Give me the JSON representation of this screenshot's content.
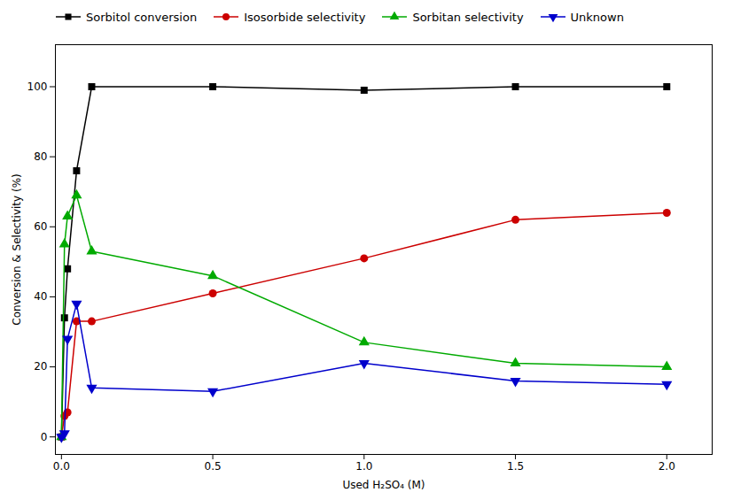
{
  "chart_data": {
    "type": "line",
    "xlabel": "Used H₂SO₄ (M)",
    "ylabel": "Conversion & Selectivity (%)",
    "xlim": [
      -0.02,
      2.15
    ],
    "ylim": [
      -5,
      112
    ],
    "xticks": [
      {
        "value": 0.0,
        "label": "0.0"
      },
      0.5,
      {
        "value": 1.0,
        "label": "1.0"
      },
      1.5,
      {
        "value": 2.0,
        "label": "2.0"
      }
    ],
    "yticks": [
      0,
      20,
      40,
      60,
      80,
      100
    ],
    "grid": false,
    "legend": "upper left",
    "x": [
      0.0,
      0.01,
      0.02,
      0.05,
      0.1,
      0.5,
      1.0,
      1.5,
      2.0
    ],
    "series": [
      {
        "name": "Sorbitol conversion",
        "color": "#000000",
        "marker": "square",
        "values": [
          0,
          34,
          48,
          76,
          100,
          100,
          99,
          100,
          100
        ]
      },
      {
        "name": "Isosorbide selectivity",
        "color": "#cc0000",
        "marker": "circle",
        "values": [
          0,
          6,
          7,
          33,
          33,
          41,
          51,
          62,
          64
        ]
      },
      {
        "name": "Sorbitan selectivity",
        "color": "#00aa00",
        "marker": "triangle-up",
        "values": [
          0,
          55,
          63,
          69,
          53,
          46,
          27,
          21,
          20
        ]
      },
      {
        "name": "Unknown",
        "color": "#0000cc",
        "marker": "triangle-down",
        "values": [
          0,
          1,
          28,
          38,
          14,
          13,
          21,
          16,
          15
        ]
      }
    ]
  }
}
